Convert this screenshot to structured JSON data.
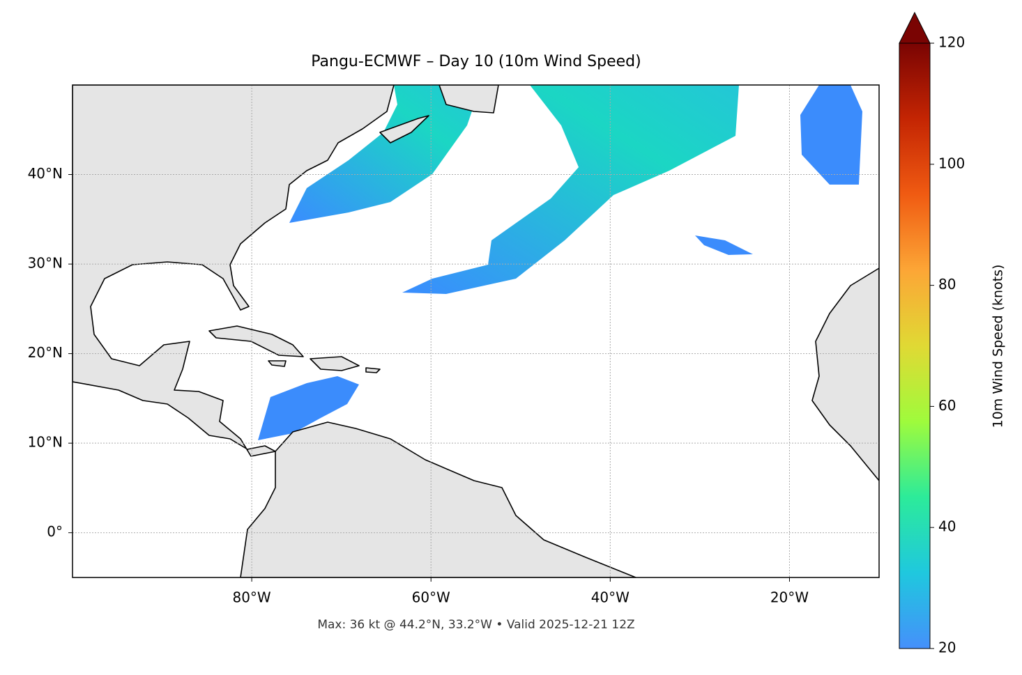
{
  "chart_data": {
    "type": "map",
    "title": "Pangu-ECMWF – Day 10 (10m Wind Speed)",
    "xlim": [
      -100,
      -10
    ],
    "ylim": [
      -5,
      50
    ],
    "xticks": [
      {
        "value": -80,
        "label": "80°W"
      },
      {
        "value": -60,
        "label": "60°W"
      },
      {
        "value": -40,
        "label": "40°W"
      },
      {
        "value": -20,
        "label": "20°W"
      }
    ],
    "yticks": [
      {
        "value": 0,
        "label": "0°"
      },
      {
        "value": 10,
        "label": "10°N"
      },
      {
        "value": 20,
        "label": "20°N"
      },
      {
        "value": 30,
        "label": "30°N"
      },
      {
        "value": 40,
        "label": "40°N"
      }
    ],
    "grid": true,
    "colorbar": {
      "label": "10m Wind Speed (knots)",
      "lim": [
        20,
        120
      ],
      "ticks": [
        20,
        40,
        60,
        80,
        100,
        120
      ],
      "colors": [
        "#4590fb",
        "#1fc8de",
        "#2ceb9a",
        "#9ffb3c",
        "#e0d934",
        "#fca636",
        "#f05b12",
        "#c42503",
        "#7a0403"
      ],
      "extend_color": "#7a0403"
    },
    "note": "Max: 36 kt @ 44.2°N, 33.2°W • Valid 2025-12-21 12Z"
  }
}
